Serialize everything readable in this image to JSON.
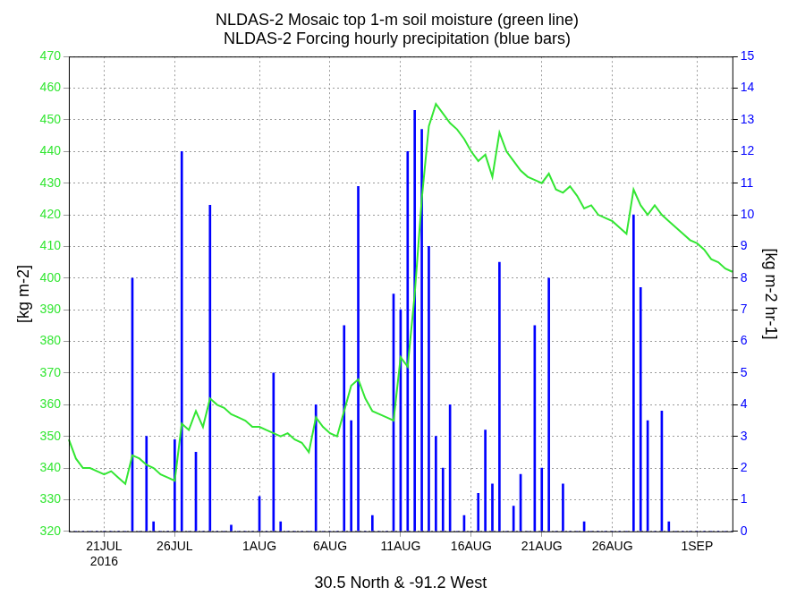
{
  "chart_data": {
    "type": "bar",
    "title": [
      "NLDAS-2 Mosaic top 1-m soil moisture (green line)",
      "NLDAS-2 Forcing hourly precipitation (blue bars)"
    ],
    "x_label": "30.5 North & -91.2 West",
    "y_label": "[kg m-2]",
    "y2_label": "[kg m-2 hr-1]",
    "categories": [
      null,
      null,
      null,
      null,
      null,
      "21JUL\n2016",
      null,
      null,
      null,
      null,
      null,
      null,
      null,
      null,
      null,
      "26JUL",
      null,
      null,
      null,
      null,
      null,
      null,
      null,
      null,
      null,
      null,
      null,
      "1AUG",
      null,
      null,
      null,
      null,
      null,
      null,
      null,
      null,
      null,
      "6AUG",
      null,
      null,
      null,
      null,
      null,
      null,
      null,
      null,
      null,
      "11AUG",
      null,
      null,
      null,
      null,
      null,
      null,
      null,
      null,
      null,
      "16AUG",
      null,
      null,
      null,
      null,
      null,
      null,
      null,
      null,
      null,
      "21AUG",
      null,
      null,
      null,
      null,
      null,
      null,
      null,
      null,
      null,
      "26AUG",
      null,
      null,
      null,
      null,
      null,
      null,
      null,
      null,
      null,
      null,
      null,
      "1SEP",
      null,
      null,
      null,
      null,
      null
    ],
    "series": [
      {
        "name": "NLDAS-2 Mosaic top 1-m soil moisture",
        "type": "line",
        "color": "#33e633",
        "values": [
          349,
          343,
          340,
          340,
          339,
          338,
          339,
          337,
          335,
          344,
          343,
          341,
          340,
          338,
          337,
          336,
          354,
          352,
          358,
          353,
          362,
          360,
          359,
          357,
          356,
          355,
          353,
          353,
          352,
          351,
          350,
          351,
          349,
          348,
          345,
          356,
          353,
          351,
          350,
          358,
          366,
          368,
          362,
          358,
          357,
          356,
          355,
          375,
          372,
          395,
          425,
          448,
          455,
          452,
          449,
          447,
          444,
          440,
          437,
          439,
          432,
          446,
          440,
          437,
          434,
          432,
          431,
          430,
          433,
          428,
          427,
          429,
          426,
          422,
          423,
          420,
          419,
          418,
          416,
          414,
          428,
          423,
          420,
          423,
          420,
          418,
          416,
          414,
          412,
          411,
          409,
          406,
          405,
          403,
          402
        ]
      },
      {
        "name": "NLDAS-2 Forcing hourly precipitation",
        "type": "bar",
        "color": "#0000ff",
        "axis": "y2",
        "values": [
          0,
          0,
          0,
          0,
          0,
          0,
          0,
          0,
          0,
          8.0,
          0,
          3.0,
          0.3,
          0,
          0,
          2.9,
          12.0,
          0,
          2.5,
          0,
          10.3,
          0,
          0,
          0.2,
          0,
          0,
          0,
          1.1,
          0,
          5.0,
          0.3,
          0,
          0,
          0,
          0,
          4.0,
          0,
          0,
          0,
          6.5,
          3.5,
          10.9,
          0,
          0.5,
          0,
          0,
          7.5,
          7.0,
          12.0,
          13.3,
          12.7,
          9.0,
          3.0,
          2.0,
          4.0,
          0,
          0.5,
          0,
          1.2,
          3.2,
          1.5,
          8.5,
          0,
          0.8,
          1.8,
          0,
          6.5,
          2.0,
          8.0,
          0,
          1.5,
          0,
          0,
          0.3,
          0,
          0,
          0,
          0,
          0,
          0,
          10.0,
          7.7,
          3.5,
          0,
          3.8,
          0.3,
          0,
          0,
          0,
          0,
          0,
          0,
          0,
          0,
          0
        ]
      }
    ],
    "ylim": [
      320,
      470
    ],
    "yticks": [
      320,
      330,
      340,
      350,
      360,
      370,
      380,
      390,
      400,
      410,
      420,
      430,
      440,
      450,
      460,
      470
    ],
    "y2lim": [
      0,
      15
    ],
    "y2ticks": [
      0,
      1,
      2,
      3,
      4,
      5,
      6,
      7,
      8,
      9,
      10,
      11,
      12,
      13,
      14,
      15
    ],
    "grid": true
  }
}
